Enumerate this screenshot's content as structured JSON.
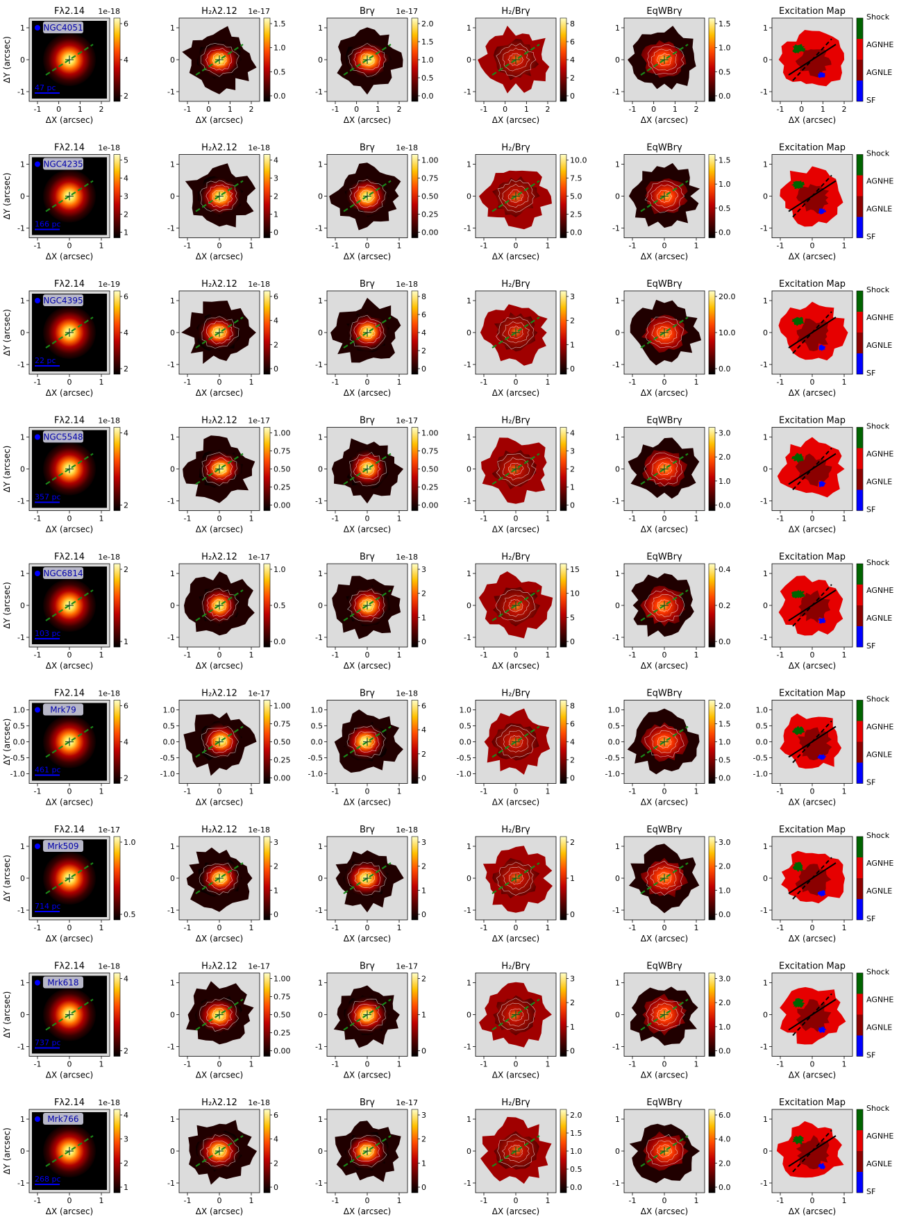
{
  "figure": {
    "colors": {
      "map_background": "#dcdcdc",
      "pa_line": "#1a8a1a",
      "scalebar": "#0000ff",
      "label_box": "#b8b8c8",
      "label_text": "#0000aa",
      "shock": "#006400",
      "agn_he": "#e60000",
      "agn_le": "#8b0000",
      "sf": "#0000ff",
      "hot_colormap": [
        "#000000",
        "#3a0000",
        "#8b0000",
        "#d01a00",
        "#ff5a00",
        "#ffa500",
        "#ffe14a",
        "#ffffc0"
      ]
    },
    "axis_labels": {
      "x": "ΔX (arcsec)",
      "y": "ΔY (arcsec)"
    },
    "columns": [
      {
        "id": "flux",
        "title": "Fλ2.14"
      },
      {
        "id": "h2",
        "title": "H₂λ2.12"
      },
      {
        "id": "brg",
        "title": "Brγ"
      },
      {
        "id": "ratio",
        "title": "H₂/Brγ"
      },
      {
        "id": "eqw",
        "title": "EqWBrγ"
      },
      {
        "id": "excitation",
        "title": "Excitation Map"
      }
    ],
    "excitation_legend": [
      "Shock",
      "AGNHE",
      "AGNLE",
      "SF"
    ],
    "rows": [
      {
        "galaxy": "NGC4051",
        "scalebar": "47 pc",
        "xticks": [
          "-1",
          "0",
          "1",
          "2"
        ],
        "yticks": [
          "1",
          "0",
          "-1"
        ],
        "panels": [
          {
            "multiplier": "1e-18",
            "ticks": [
              "6",
              "4",
              "2"
            ]
          },
          {
            "multiplier": "1e-17",
            "ticks": [
              "1.5",
              "1.0",
              "0.5",
              "0.0"
            ]
          },
          {
            "multiplier": "1e-17",
            "ticks": [
              "2.0",
              "1.5",
              "1.0",
              "0.5",
              "0.0"
            ]
          },
          {
            "multiplier": "",
            "ticks": [
              "8",
              "6",
              "4",
              "2",
              "0"
            ]
          },
          {
            "multiplier": "",
            "ticks": [
              "1.5",
              "1.0",
              "0.5",
              "0.0"
            ]
          }
        ]
      },
      {
        "galaxy": "NGC4235",
        "scalebar": "166 pc",
        "xticks": [
          "-1",
          "0",
          "1"
        ],
        "yticks": [
          "1",
          "0",
          "-1"
        ],
        "panels": [
          {
            "multiplier": "1e-18",
            "ticks": [
              "5",
              "4",
              "3",
              "2",
              "1"
            ]
          },
          {
            "multiplier": "1e-18",
            "ticks": [
              "4",
              "3",
              "2",
              "1",
              "0"
            ]
          },
          {
            "multiplier": "1e-18",
            "ticks": [
              "1.00",
              "0.75",
              "0.50",
              "0.25",
              "0.00"
            ]
          },
          {
            "multiplier": "",
            "ticks": [
              "10.0",
              "7.5",
              "5.0",
              "2.5",
              "0.0"
            ]
          },
          {
            "multiplier": "",
            "ticks": [
              "1.5",
              "1.0",
              "0.5",
              "0.0"
            ]
          }
        ]
      },
      {
        "galaxy": "NGC4395",
        "scalebar": "22 pc",
        "xticks": [
          "-1",
          "0",
          "1"
        ],
        "yticks": [
          "1",
          "0",
          "-1"
        ],
        "panels": [
          {
            "multiplier": "1e-19",
            "ticks": [
              "6",
              "4",
              "2"
            ]
          },
          {
            "multiplier": "1e-18",
            "ticks": [
              "6",
              "4",
              "2",
              "0"
            ]
          },
          {
            "multiplier": "1e-18",
            "ticks": [
              "8",
              "6",
              "4",
              "2",
              "0"
            ]
          },
          {
            "multiplier": "",
            "ticks": [
              "3",
              "2",
              "1",
              "0"
            ]
          },
          {
            "multiplier": "",
            "ticks": [
              "20.0",
              "10.0",
              "0.0"
            ]
          }
        ]
      },
      {
        "galaxy": "NGC5548",
        "scalebar": "357 pc",
        "xticks": [
          "-1",
          "0",
          "1"
        ],
        "yticks": [
          "1",
          "0",
          "-1"
        ],
        "panels": [
          {
            "multiplier": "1e-18",
            "ticks": [
              "4",
              "2"
            ]
          },
          {
            "multiplier": "1e-17",
            "ticks": [
              "1.00",
              "0.75",
              "0.50",
              "0.25",
              "0.00"
            ]
          },
          {
            "multiplier": "1e-17",
            "ticks": [
              "1.00",
              "0.75",
              "0.50",
              "0.25",
              "0.00"
            ]
          },
          {
            "multiplier": "",
            "ticks": [
              "4",
              "3",
              "2",
              "1",
              "0"
            ]
          },
          {
            "multiplier": "",
            "ticks": [
              "3.0",
              "2.0",
              "1.0",
              "0.0"
            ]
          }
        ]
      },
      {
        "galaxy": "NGC6814",
        "scalebar": "103 pc",
        "xticks": [
          "-1",
          "0",
          "1"
        ],
        "yticks": [
          "1",
          "0",
          "-1"
        ],
        "panels": [
          {
            "multiplier": "1e-18",
            "ticks": [
              "2",
              "1"
            ]
          },
          {
            "multiplier": "1e-17",
            "ticks": [
              "1.0",
              "0.5",
              "0.0"
            ]
          },
          {
            "multiplier": "1e-18",
            "ticks": [
              "3",
              "2",
              "1",
              "0"
            ]
          },
          {
            "multiplier": "",
            "ticks": [
              "15",
              "10",
              "5",
              "0"
            ]
          },
          {
            "multiplier": "",
            "ticks": [
              "0.4",
              "0.2",
              "0.0"
            ]
          }
        ]
      },
      {
        "galaxy": "Mrk79",
        "scalebar": "461 pc",
        "xticks": [
          "-1",
          "0",
          "1"
        ],
        "yticks": [
          "1.0",
          "0.5",
          "0.0",
          "-0.5",
          "-1.0"
        ],
        "panels": [
          {
            "multiplier": "1e-18",
            "ticks": [
              "6",
              "4",
              "2"
            ]
          },
          {
            "multiplier": "1e-17",
            "ticks": [
              "1.00",
              "0.75",
              "0.50",
              "0.25",
              "0.00"
            ]
          },
          {
            "multiplier": "1e-18",
            "ticks": [
              "6",
              "4",
              "2",
              "0"
            ]
          },
          {
            "multiplier": "",
            "ticks": [
              "8",
              "6",
              "4",
              "2",
              "0"
            ]
          },
          {
            "multiplier": "",
            "ticks": [
              "2.0",
              "1.5",
              "1.0",
              "0.5",
              "0.0"
            ]
          }
        ]
      },
      {
        "galaxy": "Mrk509",
        "scalebar": "714 pc",
        "xticks": [
          "-1",
          "0",
          "1"
        ],
        "yticks": [
          "1",
          "0",
          "-1"
        ],
        "panels": [
          {
            "multiplier": "1e-17",
            "ticks": [
              "1.0",
              "0.5"
            ]
          },
          {
            "multiplier": "1e-18",
            "ticks": [
              "3",
              "2",
              "1",
              "0"
            ]
          },
          {
            "multiplier": "1e-18",
            "ticks": [
              "3",
              "2",
              "1",
              "0"
            ]
          },
          {
            "multiplier": "",
            "ticks": [
              "2",
              "1",
              "0"
            ]
          },
          {
            "multiplier": "",
            "ticks": [
              "3.0",
              "2.0",
              "1.0",
              "0.0"
            ]
          }
        ]
      },
      {
        "galaxy": "Mrk618",
        "scalebar": "737 pc",
        "xticks": [
          "-1",
          "0",
          "1"
        ],
        "yticks": [
          "1",
          "0",
          "-1"
        ],
        "panels": [
          {
            "multiplier": "1e-18",
            "ticks": [
              "4",
              "2"
            ]
          },
          {
            "multiplier": "1e-17",
            "ticks": [
              "1.00",
              "0.75",
              "0.50",
              "0.25",
              "0.00"
            ]
          },
          {
            "multiplier": "1e-17",
            "ticks": [
              "2",
              "1",
              "0"
            ]
          },
          {
            "multiplier": "",
            "ticks": [
              "3",
              "2",
              "1",
              "0"
            ]
          },
          {
            "multiplier": "",
            "ticks": [
              "3.0",
              "2.0",
              "1.0",
              "0.0"
            ]
          }
        ]
      },
      {
        "galaxy": "Mrk766",
        "scalebar": "268 pc",
        "xticks": [
          "-1",
          "0",
          "1"
        ],
        "yticks": [
          "1",
          "0",
          "-1"
        ],
        "panels": [
          {
            "multiplier": "1e-18",
            "ticks": [
              "4",
              "3",
              "2",
              "1"
            ]
          },
          {
            "multiplier": "1e-18",
            "ticks": [
              "6",
              "4",
              "2",
              "0"
            ]
          },
          {
            "multiplier": "1e-17",
            "ticks": [
              "3",
              "2",
              "1",
              "0"
            ]
          },
          {
            "multiplier": "",
            "ticks": [
              "2.0",
              "1.5",
              "1.0",
              "0.5",
              "0.0"
            ]
          },
          {
            "multiplier": "",
            "ticks": [
              "6.0",
              "4.0",
              "2.0",
              "0.0"
            ]
          }
        ]
      }
    ]
  }
}
